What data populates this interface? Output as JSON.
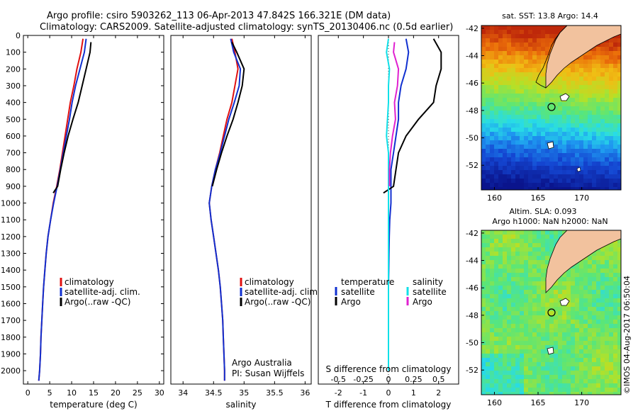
{
  "header": {
    "line1": "Argo profile: csiro 5903262_113 06-Apr-2013 47.842S 166.321E (DM data)",
    "line2": "Climatology: CARS2009. Satellite-adjusted climatology: synTS_20130406.nc (0.5d earlier)"
  },
  "side_label": "©IMOS 04-Aug-2017 06:50:04",
  "map_sst": {
    "title": "sat. SST: 13.8 Argo: 14.4"
  },
  "map_sla": {
    "title_line1": "Altim. SLA: 0.093",
    "title_line2": "Argo h1000: NaN h2000: NaN"
  },
  "credits": {
    "line1": "Argo Australia",
    "line2": "PI: Susan Wijffels"
  },
  "legend_labels": {
    "climatology": "climatology",
    "satellite_adj": "satellite-adj. clim.",
    "argo": "Argo(..raw -QC)",
    "temperature": "temperature",
    "salinity": "salinity",
    "satellite": "satellite",
    "argo_short": "Argo"
  },
  "colors": {
    "climatology": "#e01010",
    "satellite": "#1030d0",
    "argo": "#000000",
    "sal_satellite": "#10e0e8",
    "sal_argo": "#e020d0",
    "land": "#f2c29e"
  },
  "chart_data": [
    {
      "type": "line",
      "xlabel": "temperature (deg C)",
      "ylabel": "",
      "xlim": [
        -1,
        31
      ],
      "ylim": [
        2080,
        0
      ],
      "xticks": [
        0,
        5,
        10,
        15,
        20,
        25,
        30
      ],
      "yticks": [
        0,
        100,
        200,
        300,
        400,
        500,
        600,
        700,
        800,
        900,
        1000,
        1100,
        1200,
        1300,
        1400,
        1500,
        1600,
        1700,
        1800,
        1900,
        2000
      ],
      "series": [
        {
          "name": "climatology",
          "x": [
            12.6,
            12.1,
            11.2,
            10.5,
            9.7,
            9.1,
            8.5,
            7.9,
            7.3,
            6.6,
            5.8,
            5.2,
            4.6,
            4.2,
            3.9,
            3.6,
            3.4,
            3.2,
            3.0,
            2.9,
            2.7,
            2.5
          ],
          "y": [
            20,
            100,
            200,
            300,
            400,
            500,
            600,
            700,
            800,
            900,
            1000,
            1100,
            1200,
            1300,
            1400,
            1500,
            1600,
            1700,
            1800,
            1900,
            2000,
            2060
          ]
        },
        {
          "name": "satellite-adj. clim.",
          "x": [
            13.3,
            12.9,
            11.9,
            10.9,
            10.1,
            9.5,
            8.8,
            8.1,
            7.4,
            6.7,
            5.9,
            5.2,
            4.6,
            4.2,
            3.9,
            3.6,
            3.4,
            3.2,
            3.0,
            2.9,
            2.7,
            2.5
          ],
          "y": [
            20,
            100,
            200,
            300,
            400,
            500,
            600,
            700,
            800,
            900,
            1000,
            1100,
            1200,
            1300,
            1400,
            1500,
            1600,
            1700,
            1800,
            1900,
            2000,
            2060
          ]
        },
        {
          "name": "Argo(..raw -QC)",
          "x": [
            14.4,
            14.2,
            13.3,
            12.4,
            11.5,
            10.3,
            9.2,
            8.3,
            7.5,
            6.8,
            5.8
          ],
          "y": [
            40,
            100,
            200,
            300,
            400,
            500,
            600,
            700,
            800,
            900,
            940
          ]
        }
      ]
    },
    {
      "type": "line",
      "xlabel": "salinity",
      "ylabel": "",
      "xlim": [
        33.8,
        36.1
      ],
      "ylim": [
        2080,
        0
      ],
      "xticks": [
        34,
        34.5,
        35,
        35.5,
        36
      ],
      "series": [
        {
          "name": "climatology",
          "x": [
            34.8,
            34.85,
            34.9,
            34.85,
            34.8,
            34.72,
            34.66,
            34.6,
            34.53,
            34.47,
            34.43,
            34.46,
            34.5,
            34.54,
            34.58,
            34.61,
            34.63,
            34.65,
            34.66,
            34.67,
            34.68,
            34.68
          ],
          "y": [
            20,
            100,
            200,
            300,
            400,
            500,
            600,
            700,
            800,
            900,
            1000,
            1100,
            1200,
            1300,
            1400,
            1500,
            1600,
            1700,
            1800,
            1900,
            2000,
            2060
          ]
        },
        {
          "name": "satellite-adj. clim.",
          "x": [
            34.78,
            34.83,
            34.94,
            34.92,
            34.84,
            34.75,
            34.68,
            34.61,
            34.53,
            34.47,
            34.43,
            34.46,
            34.5,
            34.54,
            34.58,
            34.61,
            34.63,
            34.65,
            34.66,
            34.67,
            34.68,
            34.68
          ],
          "y": [
            20,
            100,
            200,
            300,
            400,
            500,
            600,
            700,
            800,
            900,
            1000,
            1100,
            1200,
            1300,
            1400,
            1500,
            1600,
            1700,
            1800,
            1900,
            2000,
            2060
          ]
        },
        {
          "name": "Argo(..raw -QC)",
          "x": [
            34.8,
            34.88,
            35.0,
            34.97,
            34.9,
            34.82,
            34.72,
            34.63,
            34.55,
            34.48
          ],
          "y": [
            40,
            100,
            200,
            300,
            400,
            500,
            600,
            700,
            800,
            900
          ]
        }
      ]
    },
    {
      "type": "line",
      "xlabel": "T difference from climatology",
      "xlabel_top": "S difference from climatology",
      "ylabel": "",
      "xlim": [
        -2.8,
        2.8
      ],
      "ylim": [
        2080,
        0
      ],
      "xticks": [
        -2,
        -1,
        0,
        1,
        2
      ],
      "xticks_s": [
        -0.5,
        -0.25,
        0,
        0.25,
        0.5
      ],
      "series": [
        {
          "name": "temperature satellite",
          "x": [
            0.7,
            0.8,
            0.7,
            0.5,
            0.4,
            0.4,
            0.3,
            0.2,
            0.1,
            0.1,
            0.1,
            0.05,
            0.03,
            0.02,
            0.01,
            0.0,
            0.0,
            0.0,
            0.0,
            0.0,
            0.0
          ],
          "y": [
            20,
            100,
            200,
            300,
            400,
            500,
            600,
            700,
            800,
            900,
            1000,
            1100,
            1200,
            1300,
            1400,
            1500,
            1600,
            1700,
            1800,
            1900,
            2000
          ]
        },
        {
          "name": "temperature Argo",
          "x": [
            1.8,
            2.1,
            2.1,
            1.9,
            1.8,
            1.2,
            0.7,
            0.4,
            0.3,
            0.2,
            -0.2
          ],
          "y": [
            20,
            100,
            200,
            300,
            400,
            500,
            600,
            700,
            800,
            900,
            940
          ]
        },
        {
          "name": "salinity satellite",
          "x": [
            0.0,
            -0.02,
            0.01,
            0.0,
            0.0,
            -0.01,
            -0.02,
            0.0,
            0.0,
            0.0,
            0.0,
            0.0,
            0.0,
            0.0,
            0.0,
            0.0,
            0.0,
            0.0,
            0.0,
            0.0,
            0.0
          ],
          "y": [
            20,
            100,
            200,
            300,
            400,
            500,
            600,
            700,
            800,
            900,
            1000,
            1100,
            1200,
            1300,
            1400,
            1500,
            1600,
            1700,
            1800,
            1900,
            2000
          ]
        },
        {
          "name": "salinity Argo",
          "x": [
            0.06,
            0.05,
            0.1,
            0.09,
            0.06,
            0.07,
            0.04,
            0.02,
            0.01,
            0.01
          ],
          "y": [
            40,
            100,
            200,
            300,
            400,
            500,
            600,
            700,
            800,
            900
          ]
        }
      ]
    },
    {
      "type": "heatmap",
      "title": "sat. SST: 13.8 Argo: 14.4",
      "xlim": [
        158.5,
        174.5
      ],
      "ylim": [
        -53.8,
        -41.8
      ],
      "xticks": [
        160,
        165,
        170
      ],
      "yticks": [
        -42,
        -44,
        -46,
        -48,
        -50,
        -52
      ],
      "float_position": [
        166.321,
        -47.842
      ]
    },
    {
      "type": "heatmap",
      "title": "Altim. SLA: 0.093",
      "subtitle": "Argo h1000: NaN h2000: NaN",
      "xlim": [
        158.5,
        174.5
      ],
      "ylim": [
        -53.8,
        -41.8
      ],
      "xticks": [
        160,
        165,
        170
      ],
      "yticks": [
        -42,
        -44,
        -46,
        -48,
        -50,
        -52
      ],
      "float_position": [
        166.321,
        -47.842
      ]
    }
  ]
}
